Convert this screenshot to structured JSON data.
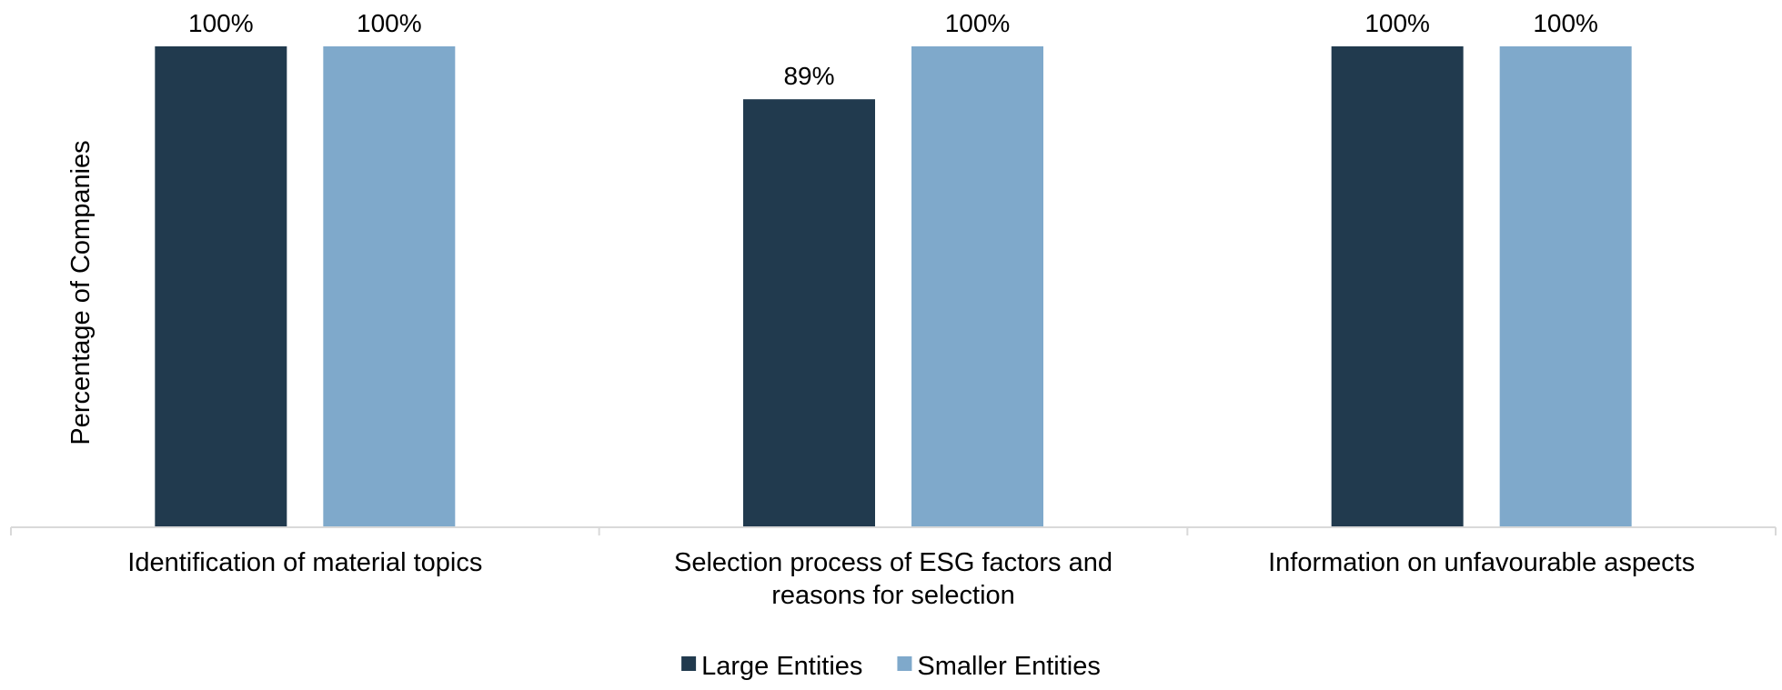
{
  "chart_data": {
    "type": "bar",
    "categories": [
      [
        "Identification of material topics"
      ],
      [
        "Selection process of ESG factors and",
        "reasons for selection"
      ],
      [
        "Information on unfavourable aspects"
      ]
    ],
    "series": [
      {
        "name": "Large Entities",
        "values": [
          100,
          89,
          100
        ],
        "labels": [
          "100%",
          "89%",
          "100%"
        ],
        "color": "#213a4e"
      },
      {
        "name": "Smaller Entities",
        "values": [
          100,
          100,
          100
        ],
        "labels": [
          "100%",
          "100%",
          "100%"
        ],
        "color": "#7fa9cb"
      }
    ],
    "ylabel": "Percentage of Companies",
    "ylim": [
      0,
      100
    ],
    "grid": false,
    "legend_position": "bottom-center",
    "axis_color": "#d9d9d9"
  }
}
